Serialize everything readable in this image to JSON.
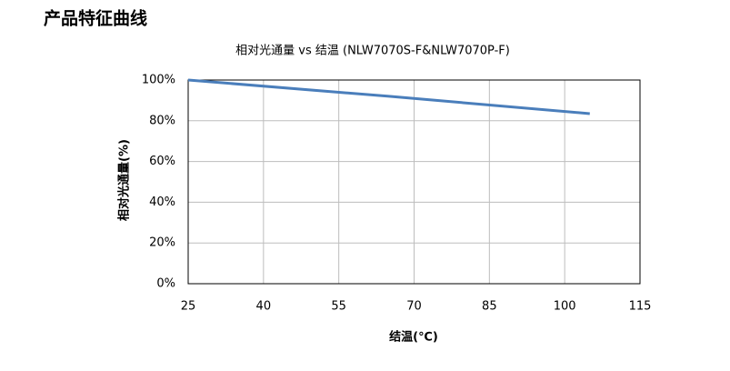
{
  "page_title": "产品特征曲线",
  "chart_data": {
    "type": "line",
    "title": "相对光通量  vs  结温   (NLW7070S-F&NLW7070P-F)",
    "x_label": "结温(℃)",
    "y_label": "相对光通量(%)",
    "x": [
      25,
      65,
      105
    ],
    "series": [
      {
        "color": "#4a7ebb",
        "values": [
          100,
          92,
          83.5
        ]
      }
    ],
    "xlim": [
      25,
      115
    ],
    "xticks": [
      25,
      40,
      55,
      70,
      85,
      100,
      115
    ],
    "ylim": [
      0,
      100
    ],
    "yticks": [
      {
        "value": 0,
        "label": "0%"
      },
      {
        "value": 20,
        "label": "20%"
      },
      {
        "value": 40,
        "label": "40%"
      },
      {
        "value": 60,
        "label": "60%"
      },
      {
        "value": 80,
        "label": "80%"
      },
      {
        "value": 100,
        "label": "100%"
      }
    ],
    "grid": true
  }
}
